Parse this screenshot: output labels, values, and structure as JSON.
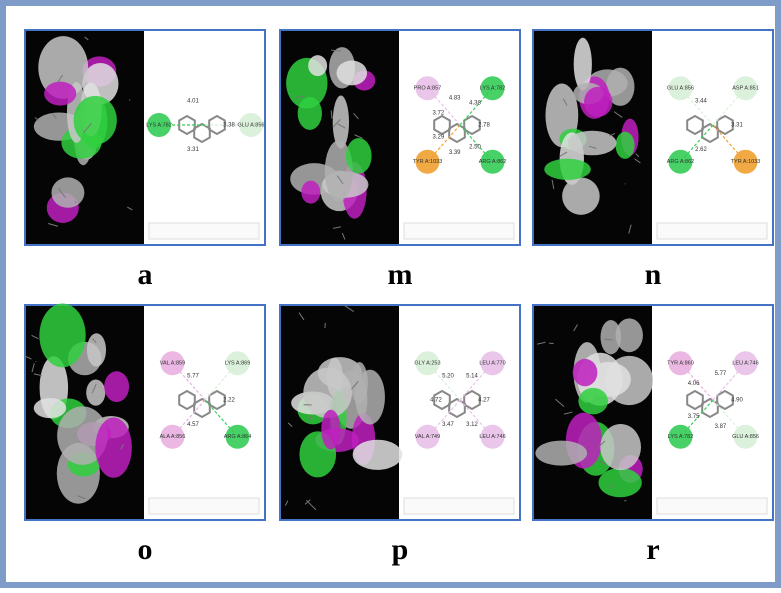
{
  "panels": [
    {
      "label": "a",
      "residues": [
        {
          "name": "GLU A:856",
          "color": "#d8f0d8"
        },
        {
          "name": "LYS A:782",
          "color": "#33cc55"
        }
      ],
      "distances": [
        "3.38",
        "3.31",
        "4.01"
      ]
    },
    {
      "label": "m",
      "residues": [
        {
          "name": "LYS A:782",
          "color": "#33cc55"
        },
        {
          "name": "ARG A:862",
          "color": "#33cc55"
        },
        {
          "name": "TYR A:1033",
          "color": "#f0a030"
        },
        {
          "name": "PRO A:857",
          "color": "#e8c0e8"
        }
      ],
      "distances": [
        "2.78",
        "2.50",
        "3.39",
        "3.29",
        "3.72",
        "4.83",
        "4.38"
      ]
    },
    {
      "label": "n",
      "residues": [
        {
          "name": "ASP A:851",
          "color": "#d8f0d8"
        },
        {
          "name": "TYR A:1033",
          "color": "#f0a030"
        },
        {
          "name": "ARG A:862",
          "color": "#33cc55"
        },
        {
          "name": "GLU A:856",
          "color": "#d8f0d8"
        }
      ],
      "distances": [
        "3.31",
        "2.62",
        "3.44"
      ]
    },
    {
      "label": "o",
      "residues": [
        {
          "name": "LYS A:869",
          "color": "#d8f0d8"
        },
        {
          "name": "ARG A:864",
          "color": "#33cc55"
        },
        {
          "name": "ALA A:856",
          "color": "#e8b0e0"
        },
        {
          "name": "VAL A:859",
          "color": "#e8b0e0"
        }
      ],
      "distances": [
        "2.22",
        "4.57",
        "5.77"
      ]
    },
    {
      "label": "p",
      "residues": [
        {
          "name": "LEU A:770",
          "color": "#e8c0e8"
        },
        {
          "name": "LEU A:746",
          "color": "#e8c0e8"
        },
        {
          "name": "VAL A:749",
          "color": "#e8c0e8"
        },
        {
          "name": "GLY A:253",
          "color": "#d8f0d8"
        }
      ],
      "distances": [
        "4.27",
        "3.12",
        "3.47",
        "4.72",
        "5.20",
        "5.14"
      ]
    },
    {
      "label": "r",
      "residues": [
        {
          "name": "LEU A:746",
          "color": "#e8c0e8"
        },
        {
          "name": "GLU A:856",
          "color": "#d8f0d8"
        },
        {
          "name": "LYS A:782",
          "color": "#33cc55"
        },
        {
          "name": "TYR A:860",
          "color": "#e8b0e0"
        }
      ],
      "distances": [
        "4.90",
        "3.87",
        "3.75",
        "4.06",
        "5.77"
      ]
    }
  ]
}
